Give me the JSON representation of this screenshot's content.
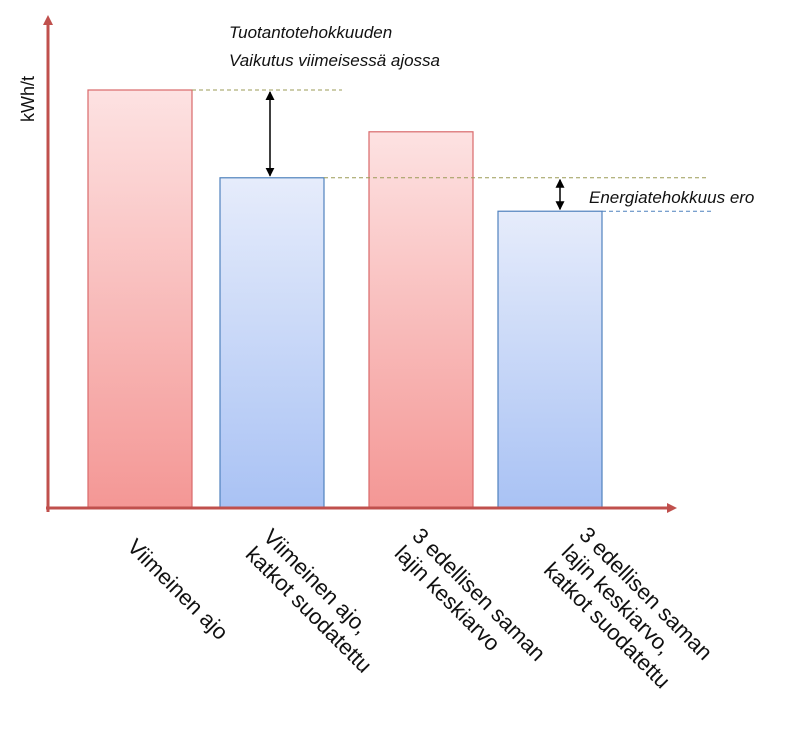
{
  "chart_data": {
    "type": "bar",
    "title": "",
    "ylabel": "kWh/t",
    "xlabel": "",
    "categories": [
      [
        "Viimeinen ajo"
      ],
      [
        "Viimeinen ajo,",
        "katkot suodatettu"
      ],
      [
        "3 edellisen saman",
        "lajin keskiarvo"
      ],
      [
        "3 edellisen saman",
        "lajin keskiarvo,",
        "katkot suodatettu"
      ]
    ],
    "values": [
      100,
      79,
      90,
      71
    ],
    "ylim": [
      0,
      110
    ],
    "grid": false,
    "bar_styles": [
      "red",
      "blue",
      "red",
      "blue"
    ],
    "annotations": [
      {
        "lines": [
          "Tuotantotehokkuuden",
          "Vaikutus viimeisessä ajossa"
        ],
        "from": 100,
        "to": 79
      },
      {
        "lines": [
          "Energiatehokkuus ero"
        ],
        "from": 79,
        "to": 71
      }
    ],
    "colors": {
      "axis": "#c0504d",
      "red_top": "#fde2e2",
      "red_bottom": "#f49795",
      "red_stroke": "#d9696a",
      "blue_top": "#e6ecfb",
      "blue_bottom": "#a9c2f4",
      "blue_stroke": "#4f81bd",
      "guide_olive": "#9b9b57",
      "guide_blue": "#4f81bd",
      "arrow": "#000000"
    }
  }
}
